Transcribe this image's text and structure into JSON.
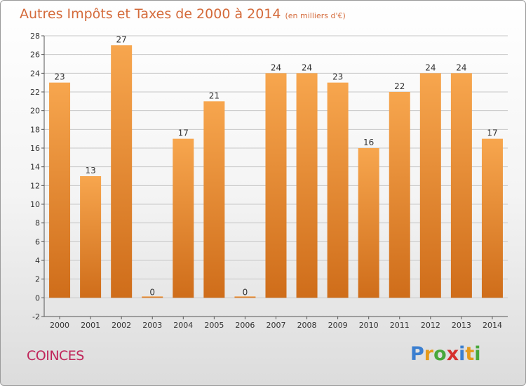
{
  "title": "Autres Impôts et Taxes de 2000 à 2014",
  "subtitle": "(en milliers d'€)",
  "commune": "COINCES",
  "logo": {
    "text": "Proxiti",
    "letters": [
      {
        "ch": "P",
        "color": "#3b7fd0"
      },
      {
        "ch": "r",
        "color": "#e59a1a"
      },
      {
        "ch": "o",
        "color": "#48a83b"
      },
      {
        "ch": "x",
        "color": "#d6312d"
      },
      {
        "ch": "i",
        "color": "#3b7fd0"
      },
      {
        "ch": "t",
        "color": "#e59a1a"
      },
      {
        "ch": "i",
        "color": "#48a83b"
      }
    ]
  },
  "colors": {
    "bar_top": "#f7a64e",
    "bar_bottom": "#cf6d1a",
    "title": "#d46a3a",
    "commune": "#c0255a",
    "grid": "#c8c8c8"
  },
  "chart_data": {
    "type": "bar",
    "title": "Autres Impôts et Taxes de 2000 à 2014",
    "subtitle": "(en milliers d'€)",
    "categories": [
      "2000",
      "2001",
      "2002",
      "2003",
      "2004",
      "2005",
      "2006",
      "2007",
      "2008",
      "2009",
      "2010",
      "2011",
      "2012",
      "2013",
      "2014"
    ],
    "values": [
      23,
      13,
      27,
      0,
      17,
      21,
      0,
      24,
      24,
      23,
      16,
      22,
      24,
      24,
      17
    ],
    "data_labels": [
      "23",
      "13",
      "27",
      "0",
      "17",
      "21",
      "0",
      "24",
      "24",
      "23",
      "16",
      "22",
      "24",
      "24",
      "17"
    ],
    "ylim": [
      -2,
      28
    ],
    "yticks": [
      -2,
      0,
      2,
      4,
      6,
      8,
      10,
      12,
      14,
      16,
      18,
      20,
      22,
      24,
      26,
      28
    ],
    "ytick_labels": [
      "-2",
      "0",
      "2",
      "4",
      "6",
      "8",
      "10",
      "12",
      "14",
      "16",
      "18",
      "20",
      "22",
      "24",
      "26",
      "28"
    ],
    "grid": true
  }
}
